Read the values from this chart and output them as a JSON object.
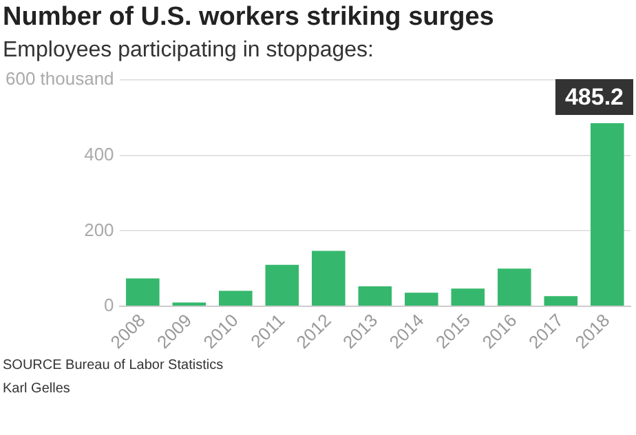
{
  "chart_data": {
    "type": "bar",
    "title": "Number of U.S. workers striking surges",
    "subtitle": "Employees participating in stoppages:",
    "categories": [
      "2008",
      "2009",
      "2010",
      "2011",
      "2012",
      "2013",
      "2014",
      "2015",
      "2016",
      "2017",
      "2018"
    ],
    "values": [
      74,
      10,
      41,
      110,
      147,
      53,
      36,
      47,
      100,
      27,
      485.2
    ],
    "value_labels": [
      null,
      null,
      null,
      null,
      null,
      null,
      null,
      null,
      null,
      null,
      "485.2"
    ],
    "color": "#35b86d",
    "ylim": [
      0,
      600
    ],
    "yticks": [
      0,
      200,
      400,
      {
        "value": 600,
        "label": "600 thousand"
      }
    ],
    "grid": "y",
    "legend": false,
    "annotations": [
      "SOURCE Bureau of Labor Statistics",
      "Karl Gelles"
    ]
  }
}
